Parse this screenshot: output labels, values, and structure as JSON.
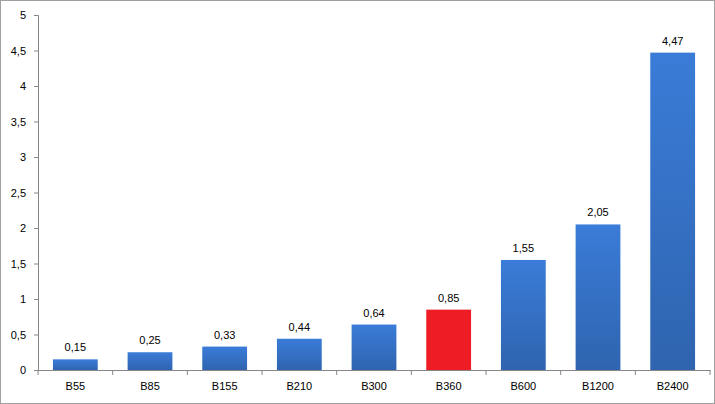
{
  "chart_data": {
    "type": "bar",
    "categories": [
      "B55",
      "B85",
      "B155",
      "B210",
      "B300",
      "B360",
      "B600",
      "B1200",
      "B2400"
    ],
    "values": [
      0.15,
      0.25,
      0.33,
      0.44,
      0.64,
      0.85,
      1.55,
      2.05,
      4.47
    ],
    "value_labels": [
      "0,15",
      "0,25",
      "0,33",
      "0,44",
      "0,64",
      "0,85",
      "1,55",
      "2,05",
      "4,47"
    ],
    "colors": [
      "#3571c6",
      "#3571c6",
      "#3571c6",
      "#3571c6",
      "#3571c6",
      "#ee1c24",
      "#3571c6",
      "#3571c6",
      "#3571c6"
    ],
    "ylim": [
      0,
      5
    ],
    "yticks": [
      0,
      {
        "value": 0.5,
        "label": "0,5"
      },
      1,
      {
        "value": 1.5,
        "label": "1,5"
      },
      2,
      {
        "value": 2.5,
        "label": "2,5"
      },
      3,
      {
        "value": 3.5,
        "label": "3,5"
      },
      4,
      {
        "value": 4.5,
        "label": "4,5"
      },
      5
    ],
    "grid": false,
    "data_labels": true
  }
}
